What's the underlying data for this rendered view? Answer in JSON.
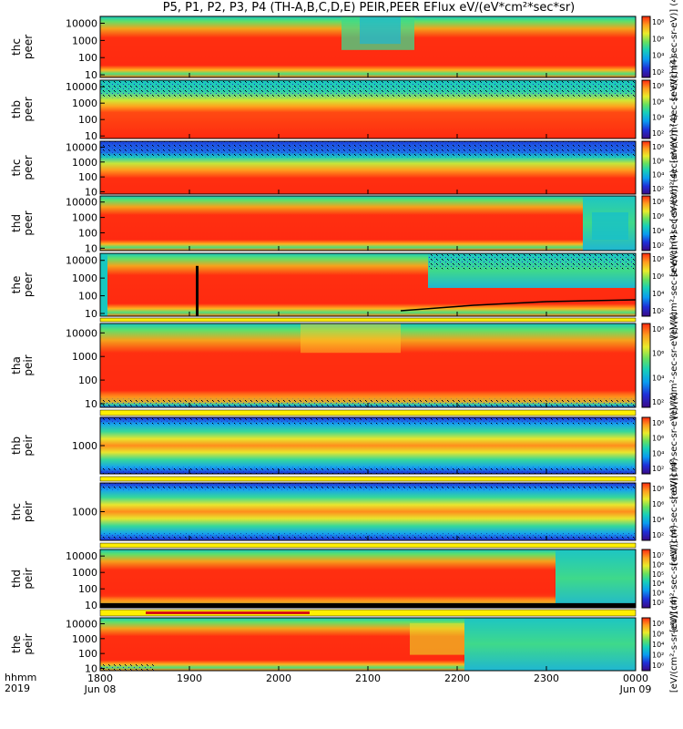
{
  "title": "P5, P1, P2, P3, P4 (TH-A,B,C,D,E) PEIR,PEER EFlux eV/(eV*cm²*sec*sr)",
  "corner": {
    "line1": "hhmm",
    "line2": "2019"
  },
  "x_axis": {
    "ticks": [
      {
        "time": "1800",
        "date": "Jun 08"
      },
      {
        "time": "1900",
        "date": ""
      },
      {
        "time": "2000",
        "date": ""
      },
      {
        "time": "2100",
        "date": ""
      },
      {
        "time": "2200",
        "date": ""
      },
      {
        "time": "2300",
        "date": ""
      },
      {
        "time": "0000",
        "date": "Jun 09"
      }
    ]
  },
  "colorbar_units": [
    "[eV/(cm²-sec-sr-eV)] (4)",
    "[eV/(cm²-sec-sr-eV)] (4)",
    "[eV/(cm²-sec-sr-eV)] (4)",
    "[eV/(cm²-sec-sr-eV)] (4)",
    "[eV/(cm²-sec-sr-eV)] (4)",
    "[eV/(cm²-sec-sr-eV)] (4)",
    "[eV/(cm²-sec-sr-eV)] (4)",
    "[eV/(cm²-sec-sr-eV)] (4)",
    "[eV/(cm²-sec-sr-eV)] (4)",
    "[eV/(cm²-s-sr-eV)] (4)"
  ],
  "chart_data": {
    "type": "heatmap",
    "x_range": [
      "1800 Jun 08 2019",
      "0000 Jun 09 2019"
    ],
    "colorscale": [
      "#3b0a87",
      "#1f2fd8",
      "#0a9cf0",
      "#18d0b8",
      "#66e060",
      "#e9ec2b",
      "#ff9d1f",
      "#ff2a10"
    ],
    "panels": [
      {
        "label": [
          "thc",
          "peer"
        ],
        "yticks": [
          "10000",
          "1000",
          "100",
          "10"
        ],
        "ylim": [
          7,
          25000
        ],
        "cbar_ticks": [
          "10⁸",
          "10⁶",
          "10⁴",
          "10²"
        ]
      },
      {
        "label": [
          "thb",
          "peer"
        ],
        "yticks": [
          "10000",
          "1000",
          "100",
          "10"
        ],
        "ylim": [
          7,
          25000
        ],
        "cbar_ticks": [
          "10⁸",
          "10⁶",
          "10⁴",
          "10²"
        ]
      },
      {
        "label": [
          "thc",
          "peer"
        ],
        "yticks": [
          "10000",
          "1000",
          "100",
          "10"
        ],
        "ylim": [
          7,
          25000
        ],
        "cbar_ticks": [
          "10⁸",
          "10⁶",
          "10⁴",
          "10²"
        ]
      },
      {
        "label": [
          "thd",
          "peer"
        ],
        "yticks": [
          "10000",
          "1000",
          "100",
          "10"
        ],
        "ylim": [
          7,
          25000
        ],
        "cbar_ticks": [
          "10⁸",
          "10⁶",
          "10⁴",
          "10²"
        ]
      },
      {
        "label": [
          "the",
          "peer"
        ],
        "yticks": [
          "10000",
          "1000",
          "100",
          "10"
        ],
        "ylim": [
          7,
          25000
        ],
        "cbar_ticks": [
          "10⁸",
          "10⁶",
          "10⁴",
          "10²"
        ]
      },
      {
        "label": [
          "tha",
          "peir"
        ],
        "yticks": [
          "10000",
          "1000",
          "100",
          "10"
        ],
        "ylim": [
          7,
          25000
        ],
        "cbar_ticks": [
          "10⁸",
          "10⁶",
          "10⁴",
          "10²"
        ]
      },
      {
        "label": [
          "thb",
          "peir"
        ],
        "yticks": [
          "1000"
        ],
        "ylim": [
          200,
          5000
        ],
        "cbar_ticks": [
          "10⁸",
          "10⁶",
          "10⁴",
          "10²"
        ]
      },
      {
        "label": [
          "thc",
          "peir"
        ],
        "yticks": [
          "1000"
        ],
        "ylim": [
          200,
          5000
        ],
        "cbar_ticks": [
          "10⁸",
          "10⁶",
          "10⁴",
          "10²"
        ]
      },
      {
        "label": [
          "thd",
          "peir"
        ],
        "yticks": [
          "10000",
          "1000",
          "100",
          "10"
        ],
        "ylim": [
          7,
          25000
        ],
        "cbar_ticks": [
          "10⁷",
          "10⁶",
          "10⁵",
          "10⁴",
          "10³",
          "10²"
        ]
      },
      {
        "label": [
          "the",
          "peir"
        ],
        "yticks": [
          "10000",
          "1000",
          "100",
          "10"
        ],
        "ylim": [
          7,
          25000
        ],
        "cbar_ticks": [
          "10⁸",
          "10⁶",
          "10⁴",
          "10²",
          "10⁰"
        ]
      }
    ]
  }
}
